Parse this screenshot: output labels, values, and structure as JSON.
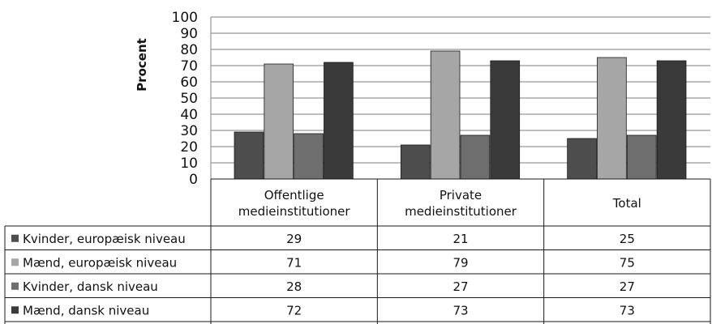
{
  "chart_data": {
    "type": "bar",
    "ylabel": "Procent",
    "ylim": [
      0,
      100
    ],
    "yticks": [
      0,
      10,
      20,
      30,
      40,
      50,
      60,
      70,
      80,
      90,
      100
    ],
    "grid": true,
    "legend": "data-table",
    "categories": [
      [
        "Offentlige",
        "medieinstitutioner"
      ],
      [
        "Private",
        "medieinstitutioner"
      ],
      [
        "Total"
      ]
    ],
    "series": [
      {
        "name": "Kvinder, europæisk niveau",
        "color": "#4d4d4d",
        "values": [
          29,
          21,
          25
        ]
      },
      {
        "name": "Mænd, europæisk niveau",
        "color": "#a6a6a6",
        "values": [
          71,
          79,
          75
        ]
      },
      {
        "name": "Kvinder, dansk niveau",
        "color": "#6e6e6e",
        "values": [
          28,
          27,
          27
        ]
      },
      {
        "name": "Mænd, dansk niveau",
        "color": "#3a3a3a",
        "values": [
          72,
          73,
          73
        ]
      }
    ]
  }
}
